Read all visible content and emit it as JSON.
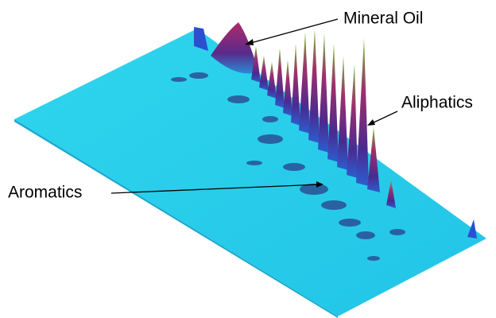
{
  "annotations": [
    {
      "label": "Mineral Oil"
    },
    {
      "label": "Aliphatics"
    },
    {
      "label": "Aromatics"
    }
  ]
}
